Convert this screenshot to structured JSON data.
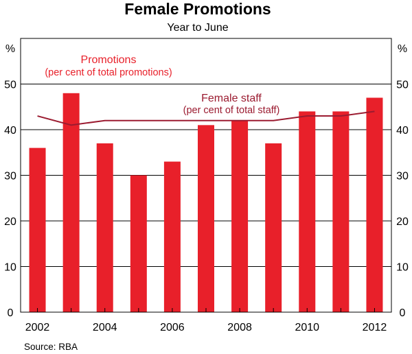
{
  "chart_data": {
    "type": "bar",
    "title": "Female Promotions",
    "subtitle": "Year to June",
    "unit_left": "%",
    "unit_right": "%",
    "x": [
      2002,
      2003,
      2004,
      2005,
      2006,
      2007,
      2008,
      2009,
      2010,
      2011,
      2012
    ],
    "x_tick_labels": [
      "2002",
      "2004",
      "2006",
      "2008",
      "2010",
      "2012"
    ],
    "ylim": [
      0,
      60
    ],
    "y_ticks": [
      0,
      10,
      20,
      30,
      40,
      50
    ],
    "grid": true,
    "series": [
      {
        "name": "Promotions",
        "sub_label": "(per cent of total promotions)",
        "type": "bar",
        "color": "#e8202a",
        "values": [
          36,
          48,
          37,
          30,
          33,
          41,
          42,
          37,
          44,
          44,
          47
        ]
      },
      {
        "name": "Female staff",
        "sub_label": "(per cent of total staff)",
        "type": "line",
        "color": "#9b1b30",
        "values": [
          43,
          41,
          42,
          42,
          42,
          42,
          42,
          42,
          43,
          43,
          44
        ]
      }
    ],
    "source": "Source: RBA"
  }
}
